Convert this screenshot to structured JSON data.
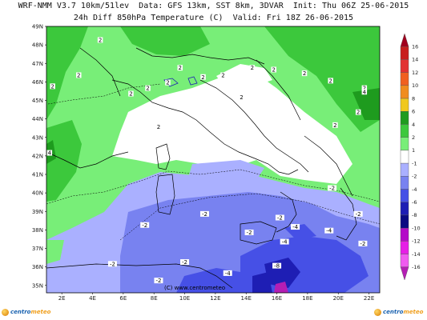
{
  "header": {
    "line1": "WRF-NMM V3.7 10km/51lev  Data: GFS 13km, SST 8km, 3DVAR  Init: Thu 06Z 25-06-2015",
    "line2": "24h Diff 850hPa Temperature (C)  Valid: Fri 18Z 26-06-2015"
  },
  "map": {
    "lon_range": [
      1,
      22.7
    ],
    "lat_range": [
      34.6,
      49
    ],
    "lon_ticks": [
      "2E",
      "4E",
      "6E",
      "8E",
      "10E",
      "12E",
      "14E",
      "16E",
      "18E",
      "20E",
      "22E"
    ],
    "lat_ticks": [
      "35N",
      "36N",
      "37N",
      "38N",
      "39N",
      "40N",
      "41N",
      "42N",
      "43N",
      "44N",
      "45N",
      "46N",
      "47N",
      "48N",
      "49N"
    ],
    "contour_labels": [
      {
        "text": "2",
        "lon": 4.5,
        "lat": 48.2
      },
      {
        "text": "2",
        "lon": 3.1,
        "lat": 46.3
      },
      {
        "text": "2",
        "lon": 1.4,
        "lat": 45.7
      },
      {
        "text": "2",
        "lon": 6.5,
        "lat": 45.3
      },
      {
        "text": "2",
        "lon": 7.6,
        "lat": 45.6
      },
      {
        "text": "2",
        "lon": 9.7,
        "lat": 46.7
      },
      {
        "text": "2",
        "lon": 8.9,
        "lat": 45.9
      },
      {
        "text": "2",
        "lon": 11.2,
        "lat": 46.2
      },
      {
        "text": "2",
        "lon": 12.5,
        "lat": 46.3
      },
      {
        "text": "2",
        "lon": 14.4,
        "lat": 46.7
      },
      {
        "text": "2",
        "lon": 15.8,
        "lat": 46.6
      },
      {
        "text": "2",
        "lon": 17.8,
        "lat": 46.4
      },
      {
        "text": "2",
        "lon": 19.5,
        "lat": 46.0
      },
      {
        "text": "2",
        "lon": 21.7,
        "lat": 45.6
      },
      {
        "text": "2",
        "lon": 21.3,
        "lat": 44.3
      },
      {
        "text": "2",
        "lon": 19.8,
        "lat": 43.6
      },
      {
        "text": "2",
        "lon": 13.7,
        "lat": 45.1
      },
      {
        "text": "2",
        "lon": 8.3,
        "lat": 43.5
      },
      {
        "text": "4",
        "lon": 1.2,
        "lat": 42.1
      },
      {
        "text": "4",
        "lon": 21.7,
        "lat": 45.4
      },
      {
        "text": "-2",
        "lon": 7.4,
        "lat": 38.2
      },
      {
        "text": "-2",
        "lon": 11.3,
        "lat": 38.8
      },
      {
        "text": "-2",
        "lon": 14.2,
        "lat": 37.8
      },
      {
        "text": "-2",
        "lon": 16.2,
        "lat": 38.6
      },
      {
        "text": "-2",
        "lon": 19.6,
        "lat": 40.2
      },
      {
        "text": "-2",
        "lon": 21.3,
        "lat": 38.8
      },
      {
        "text": "-2",
        "lon": 21.6,
        "lat": 37.2
      },
      {
        "text": "-2",
        "lon": 10.0,
        "lat": 36.2
      },
      {
        "text": "-2",
        "lon": 5.3,
        "lat": 36.1
      },
      {
        "text": "-2",
        "lon": 8.3,
        "lat": 35.2
      },
      {
        "text": "-4",
        "lon": 12.8,
        "lat": 35.6
      },
      {
        "text": "-4",
        "lon": 16.5,
        "lat": 37.3
      },
      {
        "text": "-4",
        "lon": 19.4,
        "lat": 37.9
      },
      {
        "text": "-4",
        "lon": 17.2,
        "lat": 38.1
      },
      {
        "text": "-8",
        "lon": 16.0,
        "lat": 36.0
      }
    ],
    "watermark": "(C) www.centrometeo"
  },
  "colorbar": {
    "labels": [
      "16",
      "14",
      "12",
      "10",
      "8",
      "6",
      "4",
      "2",
      "1",
      "-1",
      "-2",
      "-4",
      "-6",
      "-8",
      "-10",
      "-12",
      "-14",
      "-16"
    ],
    "colors": [
      "#a0001e",
      "#c81e1e",
      "#e23232",
      "#f06020",
      "#f08c1e",
      "#f0c81e",
      "#1e9b1e",
      "#3cc83c",
      "#78ee78",
      "#ffffff",
      "#aab0ff",
      "#7882f0",
      "#4650e6",
      "#1e1eb4",
      "#0a0a82",
      "#b40ac8",
      "#e61ee6",
      "#f05af0",
      "#b41eb4"
    ]
  },
  "logos": {
    "left_a": "centro",
    "left_b": "meteo",
    "right_a": "centro",
    "right_b": "meteo"
  }
}
